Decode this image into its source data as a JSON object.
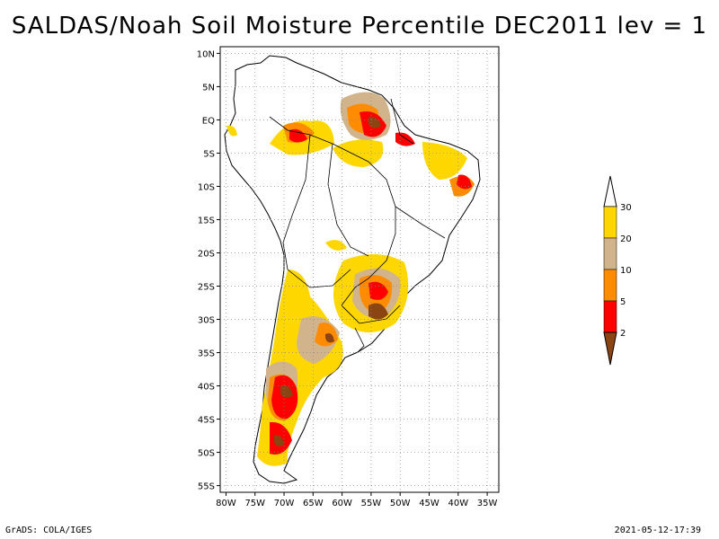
{
  "title": "SALDAS/Noah Soil Moisture Percentile DEC2011 lev = 1",
  "footer": {
    "left": "GrADS: COLA/IGES",
    "right": "2021-05-12-17:39"
  },
  "map": {
    "lat_range": [
      -56,
      11
    ],
    "lon_range": [
      -81,
      -33
    ],
    "lat_ticks": [
      {
        "value": 10,
        "label": "10N"
      },
      {
        "value": 5,
        "label": "5N"
      },
      {
        "value": 0,
        "label": "EQ"
      },
      {
        "value": -5,
        "label": "5S"
      },
      {
        "value": -10,
        "label": "10S"
      },
      {
        "value": -15,
        "label": "15S"
      },
      {
        "value": -20,
        "label": "20S"
      },
      {
        "value": -25,
        "label": "25S"
      },
      {
        "value": -30,
        "label": "30S"
      },
      {
        "value": -35,
        "label": "35S"
      },
      {
        "value": -40,
        "label": "40S"
      },
      {
        "value": -45,
        "label": "45S"
      },
      {
        "value": -50,
        "label": "50S"
      },
      {
        "value": -55,
        "label": "55S"
      }
    ],
    "lon_ticks": [
      {
        "value": -80,
        "label": "80W"
      },
      {
        "value": -75,
        "label": "75W"
      },
      {
        "value": -70,
        "label": "70W"
      },
      {
        "value": -65,
        "label": "65W"
      },
      {
        "value": -60,
        "label": "60W"
      },
      {
        "value": -55,
        "label": "55W"
      },
      {
        "value": -50,
        "label": "50W"
      },
      {
        "value": -45,
        "label": "45W"
      },
      {
        "value": -40,
        "label": "40W"
      },
      {
        "value": -35,
        "label": "35W"
      }
    ],
    "grid": true
  },
  "legend": {
    "levels": [
      "30",
      "20",
      "10",
      "5",
      "2"
    ],
    "colors": {
      "above_30": "#ffffff",
      "20_30": "#ffd700",
      "10_20": "#d2b48c",
      "5_10": "#ff8c00",
      "2_5": "#ff0000",
      "below_2": "#8b4513"
    }
  },
  "land": {
    "outline_color": "#000000",
    "fill_color": "#ffffff"
  }
}
